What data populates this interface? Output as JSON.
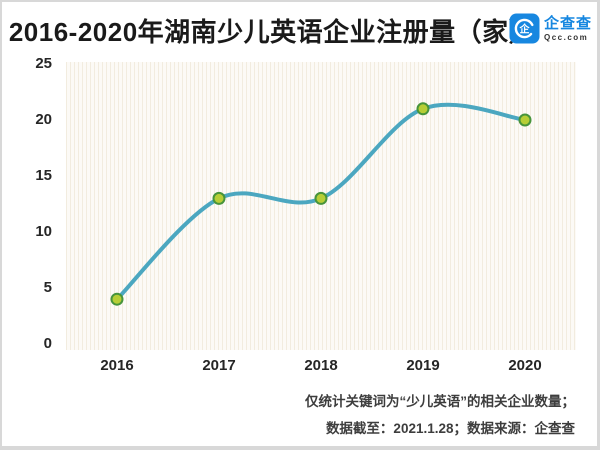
{
  "header": {
    "title": "2016-2020年湖南少儿英语企业注册量（家）"
  },
  "logo": {
    "name_cn": "企查查",
    "domain": "Qcc.com",
    "icon": "qcc-circle-mark-icon",
    "icon_glyph": "企",
    "brand_color": "#1787e0"
  },
  "chart_data": {
    "type": "line",
    "title": "2016-2020年湖南少儿英语企业注册量（家）",
    "categories": [
      "2016",
      "2017",
      "2018",
      "2019",
      "2020"
    ],
    "values": [
      4,
      13,
      13,
      21,
      20
    ],
    "yticks": [
      0,
      5,
      10,
      15,
      20,
      25
    ],
    "ylim": [
      0,
      25
    ],
    "xlabel": "",
    "ylabel": "",
    "grid": "none",
    "smooth": true,
    "line_color": "#4ba7c0",
    "marker_fill": "#b6ce36",
    "marker_stroke": "#47943b",
    "panel_background": "striped-cream"
  },
  "footer": {
    "note_line1": "仅统计关键词为“少儿英语”的相关企业数量；",
    "note_line2": "数据截至：2021.1.28；数据来源：企查查"
  }
}
